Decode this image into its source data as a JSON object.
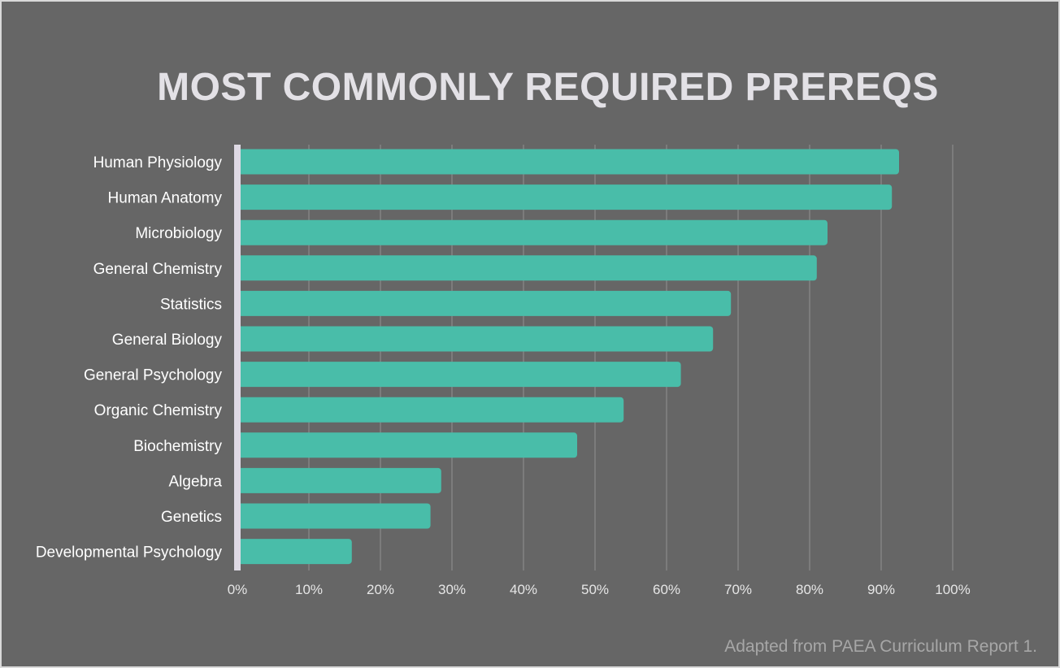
{
  "title": "MOST COMMONLY REQUIRED PREREQS",
  "source_note": "Adapted from PAEA Curriculum Report 1.",
  "colors": {
    "background": "#666666",
    "bar": "#49bda9",
    "axis": "#ded9e4",
    "grid": "#8a8a8a"
  },
  "chart_data": {
    "type": "bar",
    "orientation": "horizontal",
    "title": "MOST COMMONLY REQUIRED PREREQS",
    "categories": [
      "Human Physiology",
      "Human Anatomy",
      "Microbiology",
      "General Chemistry",
      "Statistics",
      "General Biology",
      "General Psychology",
      "Organic Chemistry",
      "Biochemistry",
      "Algebra",
      "Genetics",
      "Developmental Psychology"
    ],
    "values": [
      92.5,
      91.5,
      82.5,
      81,
      69,
      66.5,
      62,
      54,
      47.5,
      28.5,
      27,
      16
    ],
    "unit": "%",
    "xlim": [
      0,
      100
    ],
    "xticks": [
      "0%",
      "10%",
      "20%",
      "30%",
      "40%",
      "50%",
      "60%",
      "70%",
      "80%",
      "90%",
      "100%"
    ],
    "grid": true,
    "legend": "none"
  }
}
